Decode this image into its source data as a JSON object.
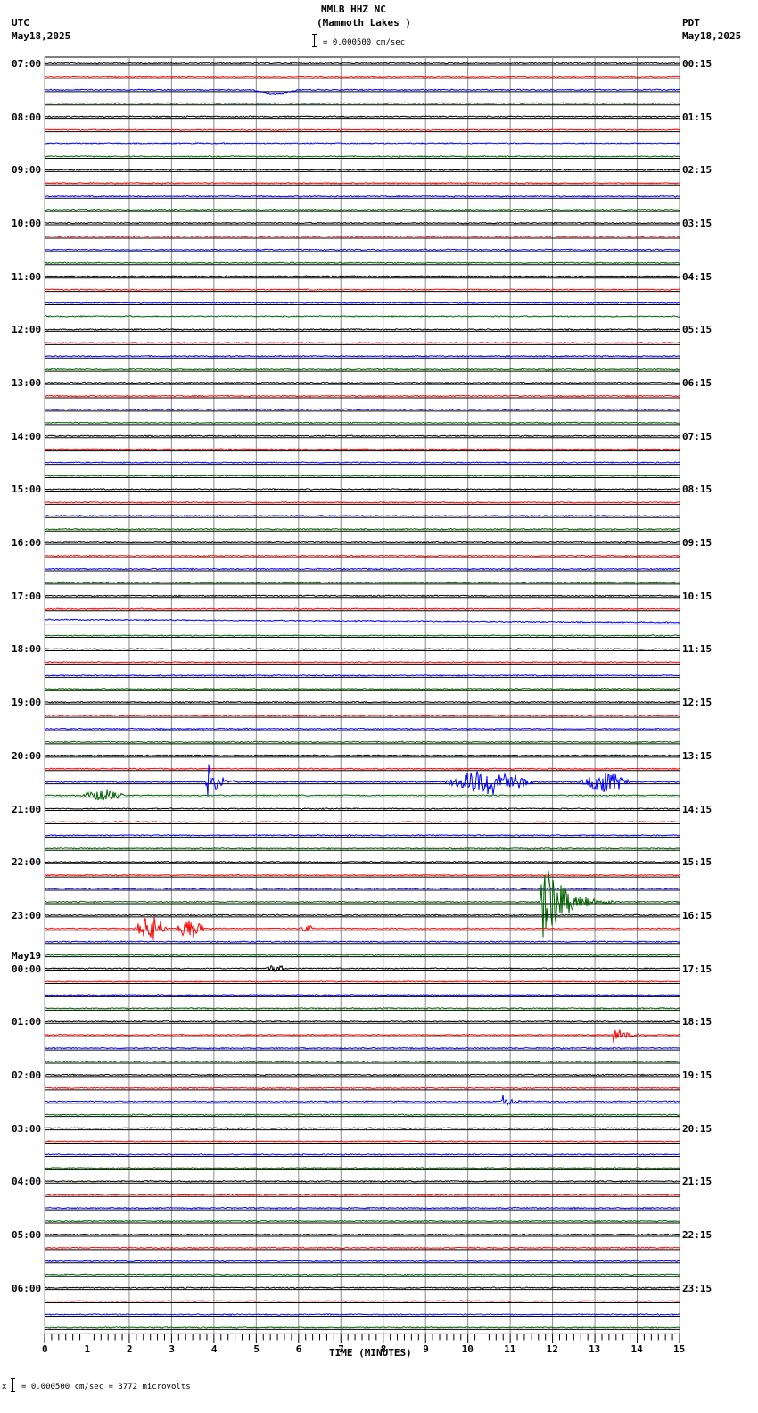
{
  "header": {
    "station": "MMLB HHZ NC",
    "location": "(Mammoth Lakes )",
    "left_tz": "UTC",
    "left_date": "May18,2025",
    "right_tz": "PDT",
    "right_date": "May18,2025",
    "scale_text": "= 0.000500 cm/sec"
  },
  "footer": {
    "scale_prefix": "x",
    "scale_text": "= 0.000500 cm/sec =    3772 microvolts"
  },
  "colors": {
    "trace_cycle": [
      "#000000",
      "#ff0000",
      "#0000ff",
      "#006400"
    ],
    "grid_vertical": "#8c8c8c",
    "baseline": "#000000"
  },
  "chart_data": {
    "type": "line",
    "title": "MMLB HHZ NC (Mammoth Lakes )",
    "subtitle": "= 0.000500 cm/sec",
    "xlabel": "TIME (MINUTES)",
    "ylabel": "",
    "xlim": [
      0,
      15
    ],
    "x_ticks": [
      "0",
      "1",
      "2",
      "3",
      "4",
      "5",
      "6",
      "7",
      "8",
      "9",
      "10",
      "11",
      "12",
      "13",
      "14",
      "15"
    ],
    "grid": true,
    "traces_per_hour": 4,
    "trace_count": 96,
    "left_hour_labels": [
      {
        "row": 0,
        "label": "07:00"
      },
      {
        "row": 4,
        "label": "08:00"
      },
      {
        "row": 8,
        "label": "09:00"
      },
      {
        "row": 12,
        "label": "10:00"
      },
      {
        "row": 16,
        "label": "11:00"
      },
      {
        "row": 20,
        "label": "12:00"
      },
      {
        "row": 24,
        "label": "13:00"
      },
      {
        "row": 28,
        "label": "14:00"
      },
      {
        "row": 32,
        "label": "15:00"
      },
      {
        "row": 36,
        "label": "16:00"
      },
      {
        "row": 40,
        "label": "17:00"
      },
      {
        "row": 44,
        "label": "18:00"
      },
      {
        "row": 48,
        "label": "19:00"
      },
      {
        "row": 52,
        "label": "20:00"
      },
      {
        "row": 56,
        "label": "21:00"
      },
      {
        "row": 60,
        "label": "22:00"
      },
      {
        "row": 64,
        "label": "23:00"
      },
      {
        "row": 68,
        "label": "00:00",
        "date": "May19"
      },
      {
        "row": 72,
        "label": "01:00"
      },
      {
        "row": 76,
        "label": "02:00"
      },
      {
        "row": 80,
        "label": "03:00"
      },
      {
        "row": 84,
        "label": "04:00"
      },
      {
        "row": 88,
        "label": "05:00"
      },
      {
        "row": 92,
        "label": "06:00"
      }
    ],
    "right_hour_labels": [
      {
        "row": 0,
        "label": "00:15"
      },
      {
        "row": 4,
        "label": "01:15"
      },
      {
        "row": 8,
        "label": "02:15"
      },
      {
        "row": 12,
        "label": "03:15"
      },
      {
        "row": 16,
        "label": "04:15"
      },
      {
        "row": 20,
        "label": "05:15"
      },
      {
        "row": 24,
        "label": "06:15"
      },
      {
        "row": 28,
        "label": "07:15"
      },
      {
        "row": 32,
        "label": "08:15"
      },
      {
        "row": 36,
        "label": "09:15"
      },
      {
        "row": 40,
        "label": "10:15"
      },
      {
        "row": 44,
        "label": "11:15"
      },
      {
        "row": 48,
        "label": "12:15"
      },
      {
        "row": 52,
        "label": "13:15"
      },
      {
        "row": 56,
        "label": "14:15"
      },
      {
        "row": 60,
        "label": "15:15"
      },
      {
        "row": 64,
        "label": "16:15"
      },
      {
        "row": 68,
        "label": "17:15"
      },
      {
        "row": 72,
        "label": "18:15"
      },
      {
        "row": 76,
        "label": "19:15"
      },
      {
        "row": 80,
        "label": "20:15"
      },
      {
        "row": 84,
        "label": "21:15"
      },
      {
        "row": 88,
        "label": "22:15"
      },
      {
        "row": 92,
        "label": "23:15"
      }
    ],
    "events": [
      {
        "row": 2,
        "minute_start": 4.9,
        "minute_end": 6.0,
        "amplitude": 4,
        "type": "long-period dip"
      },
      {
        "row": 54,
        "minute_start": 3.8,
        "minute_end": 4.7,
        "amplitude": 30,
        "type": "local quake"
      },
      {
        "row": 54,
        "minute_start": 9.4,
        "minute_end": 11.6,
        "amplitude": 14,
        "type": "burst"
      },
      {
        "row": 54,
        "minute_start": 12.6,
        "minute_end": 13.9,
        "amplitude": 12,
        "type": "burst"
      },
      {
        "row": 55,
        "minute_start": 0.8,
        "minute_end": 2.0,
        "amplitude": 6,
        "type": "burst"
      },
      {
        "row": 63,
        "minute_start": 11.7,
        "minute_end": 13.5,
        "amplitude": 60,
        "type": "local quake"
      },
      {
        "row": 65,
        "minute_start": 2.1,
        "minute_end": 2.9,
        "amplitude": 14,
        "type": "burst"
      },
      {
        "row": 65,
        "minute_start": 3.1,
        "minute_end": 3.8,
        "amplitude": 13,
        "type": "burst"
      },
      {
        "row": 65,
        "minute_start": 6.0,
        "minute_end": 6.4,
        "amplitude": 4,
        "type": "burst"
      },
      {
        "row": 68,
        "minute_start": 5.2,
        "minute_end": 5.7,
        "amplitude": 4,
        "type": "burst"
      },
      {
        "row": 73,
        "minute_start": 13.4,
        "minute_end": 14.2,
        "amplitude": 20,
        "type": "local quake"
      },
      {
        "row": 78,
        "minute_start": 10.8,
        "minute_end": 11.5,
        "amplitude": 10,
        "type": "local quake"
      }
    ]
  }
}
